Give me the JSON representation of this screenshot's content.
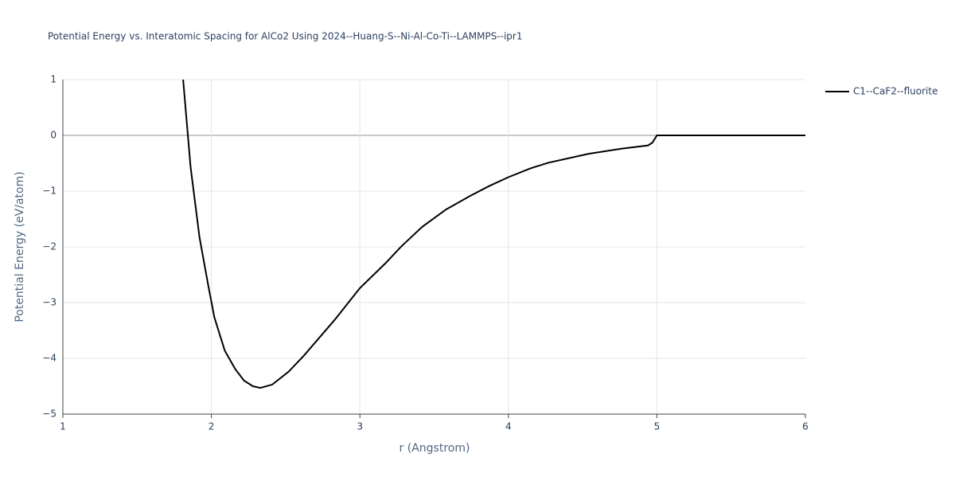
{
  "chart_data": {
    "type": "line",
    "title": "Potential Energy vs. Interatomic Spacing for AlCo2 Using 2024--Huang-S--Ni-Al-Co-Ti--LAMMPS--ipr1",
    "x_label": "r (Angstrom)",
    "y_label": "Potential Energy (eV/atom)",
    "x": [
      1.81,
      1.86,
      1.92,
      1.98,
      2.02,
      2.09,
      2.16,
      2.22,
      2.28,
      2.33,
      2.41,
      2.52,
      2.62,
      2.83,
      3.0,
      3.17,
      3.28,
      3.42,
      3.58,
      3.74,
      3.87,
      4.0,
      4.15,
      4.27,
      4.54,
      4.76,
      4.94,
      4.97,
      5.0,
      6.0
    ],
    "series": [
      {
        "name": "C1--CaF2--fluorite",
        "color": "#000000",
        "values": [
          1,
          -0.57,
          -1.83,
          -2.71,
          -3.26,
          -3.86,
          -4.19,
          -4.4,
          -4.5,
          -4.53,
          -4.47,
          -4.24,
          -3.96,
          -3.31,
          -2.74,
          -2.3,
          -1.99,
          -1.64,
          -1.33,
          -1.09,
          -0.91,
          -0.75,
          -0.59,
          -0.49,
          -0.33,
          -0.24,
          -0.18,
          -0.13,
          0,
          0
        ]
      }
    ],
    "xlim": [
      1,
      6
    ],
    "ylim": [
      -5,
      1
    ],
    "xticks": [
      1,
      2,
      3,
      4,
      5,
      6
    ],
    "yticks": [
      {
        "value": -5,
        "label": "−5"
      },
      {
        "value": -4,
        "label": "−4"
      },
      {
        "value": -3,
        "label": "−3"
      },
      {
        "value": -2,
        "label": "−2"
      },
      {
        "value": -1,
        "label": "−1"
      },
      0,
      1
    ],
    "grid": true,
    "legend": "right"
  }
}
